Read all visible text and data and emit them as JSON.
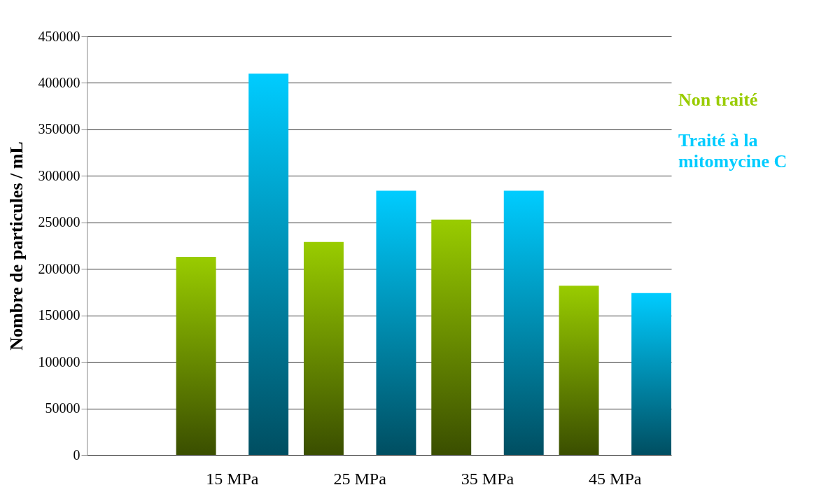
{
  "chart_data": {
    "type": "bar",
    "ylabel": "Nombre de particules / mL",
    "categories": [
      "15 MPa",
      "25 MPa",
      "35 MPa",
      "45 MPa"
    ],
    "series": [
      {
        "name": "Non traité",
        "color": "#99cc00",
        "values": [
          213000,
          229000,
          253000,
          182000
        ]
      },
      {
        "name": "Traité à la mitomycine C",
        "color": "#00ccff",
        "values": [
          410000,
          284000,
          284000,
          174000
        ]
      }
    ],
    "ylim": [
      0,
      450000
    ],
    "yticks": [
      0,
      50000,
      100000,
      150000,
      200000,
      250000,
      300000,
      350000,
      400000,
      450000
    ],
    "grid": "y",
    "legend": "right"
  }
}
